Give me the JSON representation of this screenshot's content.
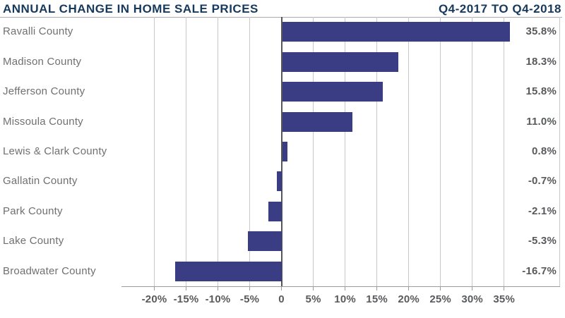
{
  "header": {
    "title": "ANNUAL CHANGE IN HOME SALE PRICES",
    "period": "Q4-2017 TO Q4-2018"
  },
  "colors": {
    "bar": "#3a3d84",
    "header_text": "#17395c",
    "category_label": "#6f7072",
    "value_label": "#58595b",
    "tick_label": "#595a5c",
    "gridline": "#c9c9ca",
    "zero_line": "#54565a",
    "axis_line": "#9b9c9e"
  },
  "chart_data": {
    "type": "bar",
    "orientation": "horizontal",
    "title": "ANNUAL CHANGE IN HOME SALE PRICES",
    "subtitle": "Q4-2017 TO Q4-2018",
    "categories": [
      "Ravalli County",
      "Madison County",
      "Jefferson County",
      "Missoula County",
      "Lewis & Clark County",
      "Gallatin County",
      "Park County",
      "Lake County",
      "Broadwater County"
    ],
    "values": [
      35.8,
      18.3,
      15.8,
      11.0,
      0.8,
      -0.7,
      -2.1,
      -5.3,
      -16.7
    ],
    "value_labels": [
      "35.8%",
      "18.3%",
      "15.8%",
      "11.0%",
      "0.8%",
      "-0.7%",
      "-2.1%",
      "-5.3%",
      "-16.7%"
    ],
    "xlabel": "",
    "ylabel": "",
    "xlim": [
      -24.5,
      43.7
    ],
    "x_ticks": [
      {
        "value": -20,
        "label": "-20%"
      },
      {
        "value": -15,
        "label": "-15%"
      },
      {
        "value": -10,
        "label": "-10%"
      },
      {
        "value": -5,
        "label": "-5%"
      },
      {
        "value": 0,
        "label": "0"
      },
      {
        "value": 5,
        "label": "5%"
      },
      {
        "value": 10,
        "label": "10%"
      },
      {
        "value": 15,
        "label": "15%"
      },
      {
        "value": 20,
        "label": "20%"
      },
      {
        "value": 25,
        "label": "25%"
      },
      {
        "value": 30,
        "label": "30%"
      },
      {
        "value": 35,
        "label": "35%"
      }
    ],
    "grid": "vertical",
    "legend": "none"
  }
}
